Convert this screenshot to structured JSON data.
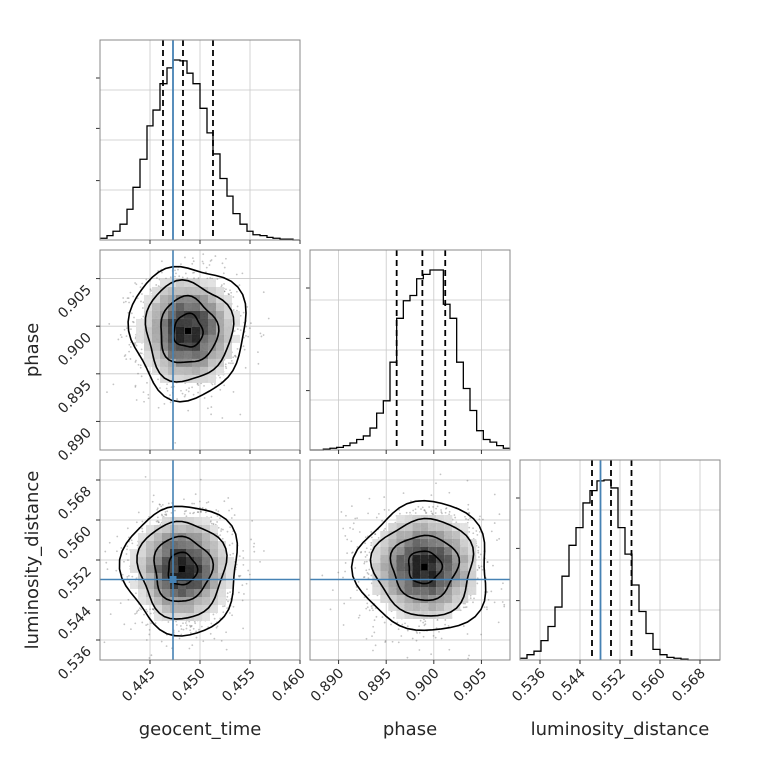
{
  "chart_data": {
    "type": "corner",
    "parameters": [
      {
        "name": "geocent_time",
        "label": "geocent_time",
        "range": [
          0.44,
          0.46
        ],
        "ticks": [
          "0.445",
          "0.450",
          "0.455",
          "0.460"
        ],
        "truth": 0.4473,
        "quantiles": [
          0.4463,
          0.4483,
          0.4513
        ],
        "hist_bins": [
          0.44,
          0.4407,
          0.4413,
          0.442,
          0.4427,
          0.4433,
          0.444,
          0.4447,
          0.4453,
          0.446,
          0.4467,
          0.4473,
          0.448,
          0.4487,
          0.4493,
          0.45,
          0.4507,
          0.4513,
          0.452,
          0.4527,
          0.4533,
          0.454,
          0.4547,
          0.4553,
          0.456,
          0.4567,
          0.4573,
          0.458,
          0.4587,
          0.4593,
          0.46
        ],
        "hist_counts": [
          2,
          5,
          10,
          18,
          35,
          60,
          92,
          130,
          148,
          178,
          196,
          205,
          204,
          190,
          178,
          150,
          122,
          98,
          70,
          50,
          30,
          18,
          10,
          6,
          5,
          3,
          2,
          1,
          1,
          0
        ]
      },
      {
        "name": "phase",
        "label": "phase",
        "range": [
          0.887,
          0.908
        ],
        "ticks": [
          "0.890",
          "0.895",
          "0.900",
          "0.905"
        ],
        "truth": null,
        "quantiles": [
          0.8961,
          0.8988,
          0.9012
        ],
        "hist_bins": [
          0.887,
          0.8877,
          0.8884,
          0.8891,
          0.8898,
          0.8905,
          0.8912,
          0.8919,
          0.8926,
          0.8933,
          0.894,
          0.8947,
          0.8954,
          0.8961,
          0.8968,
          0.8975,
          0.8982,
          0.8989,
          0.8996,
          0.9003,
          0.901,
          0.9017,
          0.9024,
          0.9031,
          0.9038,
          0.9045,
          0.9052,
          0.9059,
          0.9066,
          0.9073,
          0.908
        ],
        "hist_counts": [
          0,
          0,
          1,
          2,
          3,
          5,
          8,
          12,
          16,
          25,
          42,
          56,
          100,
          150,
          170,
          176,
          195,
          200,
          205,
          205,
          166,
          150,
          100,
          70,
          45,
          22,
          12,
          9,
          5,
          2
        ]
      },
      {
        "name": "luminosity_distance",
        "label": "luminosity_distance",
        "range": [
          0.532,
          0.572
        ],
        "ticks": [
          "0.536",
          "0.544",
          "0.552",
          "0.560",
          "0.568"
        ],
        "truth": 0.5481,
        "quantiles": [
          0.5464,
          0.5502,
          0.5543
        ],
        "hist_bins": [
          0.532,
          0.5334,
          0.5348,
          0.5362,
          0.5376,
          0.539,
          0.5404,
          0.5418,
          0.5432,
          0.5446,
          0.546,
          0.5474,
          0.5488,
          0.5502,
          0.5516,
          0.553,
          0.5544,
          0.5558,
          0.5572,
          0.5586,
          0.56,
          0.5614,
          0.5628,
          0.5642,
          0.5656,
          0.567,
          0.5684,
          0.5698,
          0.5712,
          0.572
        ],
        "hist_counts": [
          2,
          6,
          10,
          22,
          38,
          60,
          95,
          130,
          150,
          178,
          192,
          203,
          204,
          195,
          150,
          120,
          85,
          55,
          30,
          12,
          6,
          3,
          2,
          1,
          0,
          0,
          0,
          0,
          0
        ]
      }
    ],
    "pairs": [
      {
        "x": "geocent_time",
        "y": "phase",
        "center": [
          0.4488,
          0.8995
        ],
        "sigma": [
          0.0024,
          0.0029
        ],
        "n_points": 1600,
        "truth_x": 0.4473,
        "truth_y": null
      },
      {
        "x": "geocent_time",
        "y": "luminosity_distance",
        "center": [
          0.4482,
          0.5502
        ],
        "sigma": [
          0.0024,
          0.0054
        ],
        "n_points": 1600,
        "truth_x": 0.4473,
        "truth_y": 0.5481
      },
      {
        "x": "phase",
        "y": "luminosity_distance",
        "center": [
          0.899,
          0.5506
        ],
        "sigma": [
          0.0029,
          0.0054
        ],
        "n_points": 1600,
        "truth_x": null,
        "truth_y": 0.5481
      }
    ],
    "truth_color": "#4682b4",
    "hist_color": "#000000",
    "grid": true
  }
}
